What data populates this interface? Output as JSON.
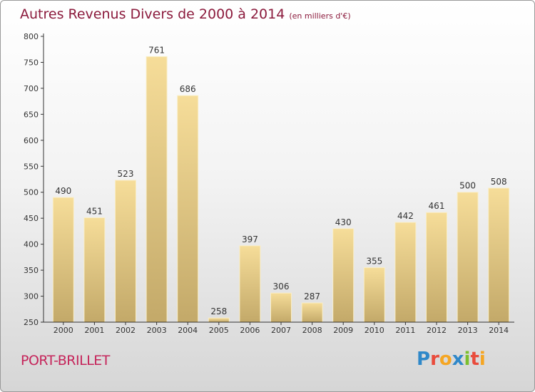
{
  "chart_data": {
    "type": "bar",
    "title": "Autres Revenus Divers de 2000 à 2014",
    "subtitle": "(en milliers d'€)",
    "categories": [
      "2000",
      "2001",
      "2002",
      "2003",
      "2004",
      "2005",
      "2006",
      "2007",
      "2008",
      "2009",
      "2010",
      "2011",
      "2012",
      "2013",
      "2014"
    ],
    "values": [
      490,
      451,
      523,
      761,
      686,
      258,
      397,
      306,
      287,
      430,
      355,
      442,
      461,
      500,
      508
    ],
    "ylim": [
      250,
      800
    ],
    "yticks": [
      250,
      300,
      350,
      400,
      450,
      500,
      550,
      600,
      650,
      700,
      750,
      800
    ],
    "xlabel": "",
    "ylabel": "",
    "grid": false,
    "colors": {
      "bar_top": "#f6dd99",
      "bar_bottom": "#c3a969",
      "title": "#8b1a3c"
    }
  },
  "footer": {
    "commune": "PORT-BRILLET",
    "logo_letters": [
      {
        "ch": "P",
        "color": "#2f88c9"
      },
      {
        "ch": "r",
        "color": "#e94b3c"
      },
      {
        "ch": "o",
        "color": "#f5a623"
      },
      {
        "ch": "x",
        "color": "#2f88c9"
      },
      {
        "ch": "i",
        "color": "#7bbf2f"
      },
      {
        "ch": "t",
        "color": "#e94b3c"
      },
      {
        "ch": "i",
        "color": "#f5a623"
      }
    ]
  }
}
